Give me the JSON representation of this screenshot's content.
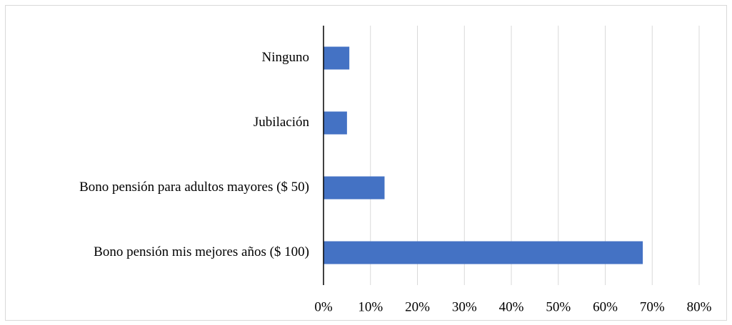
{
  "chart_data": {
    "type": "barh",
    "categories": [
      "Ninguno",
      "Jubilación",
      "Bono pensión para adultos mayores ($ 50)",
      "Bono pensión mis mejores años ($ 100)"
    ],
    "values": [
      5.5,
      5,
      13,
      68
    ],
    "color": "#4472c4",
    "xlim": [
      0,
      80
    ],
    "xticks": [
      {
        "value": 0,
        "label": "0%"
      },
      {
        "value": 10,
        "label": "10%"
      },
      {
        "value": 20,
        "label": "20%"
      },
      {
        "value": 30,
        "label": "30%"
      },
      {
        "value": 40,
        "label": "40%"
      },
      {
        "value": 50,
        "label": "50%"
      },
      {
        "value": 60,
        "label": "60%"
      },
      {
        "value": 70,
        "label": "70%"
      },
      {
        "value": 80,
        "label": "80%"
      }
    ],
    "grid": true
  }
}
